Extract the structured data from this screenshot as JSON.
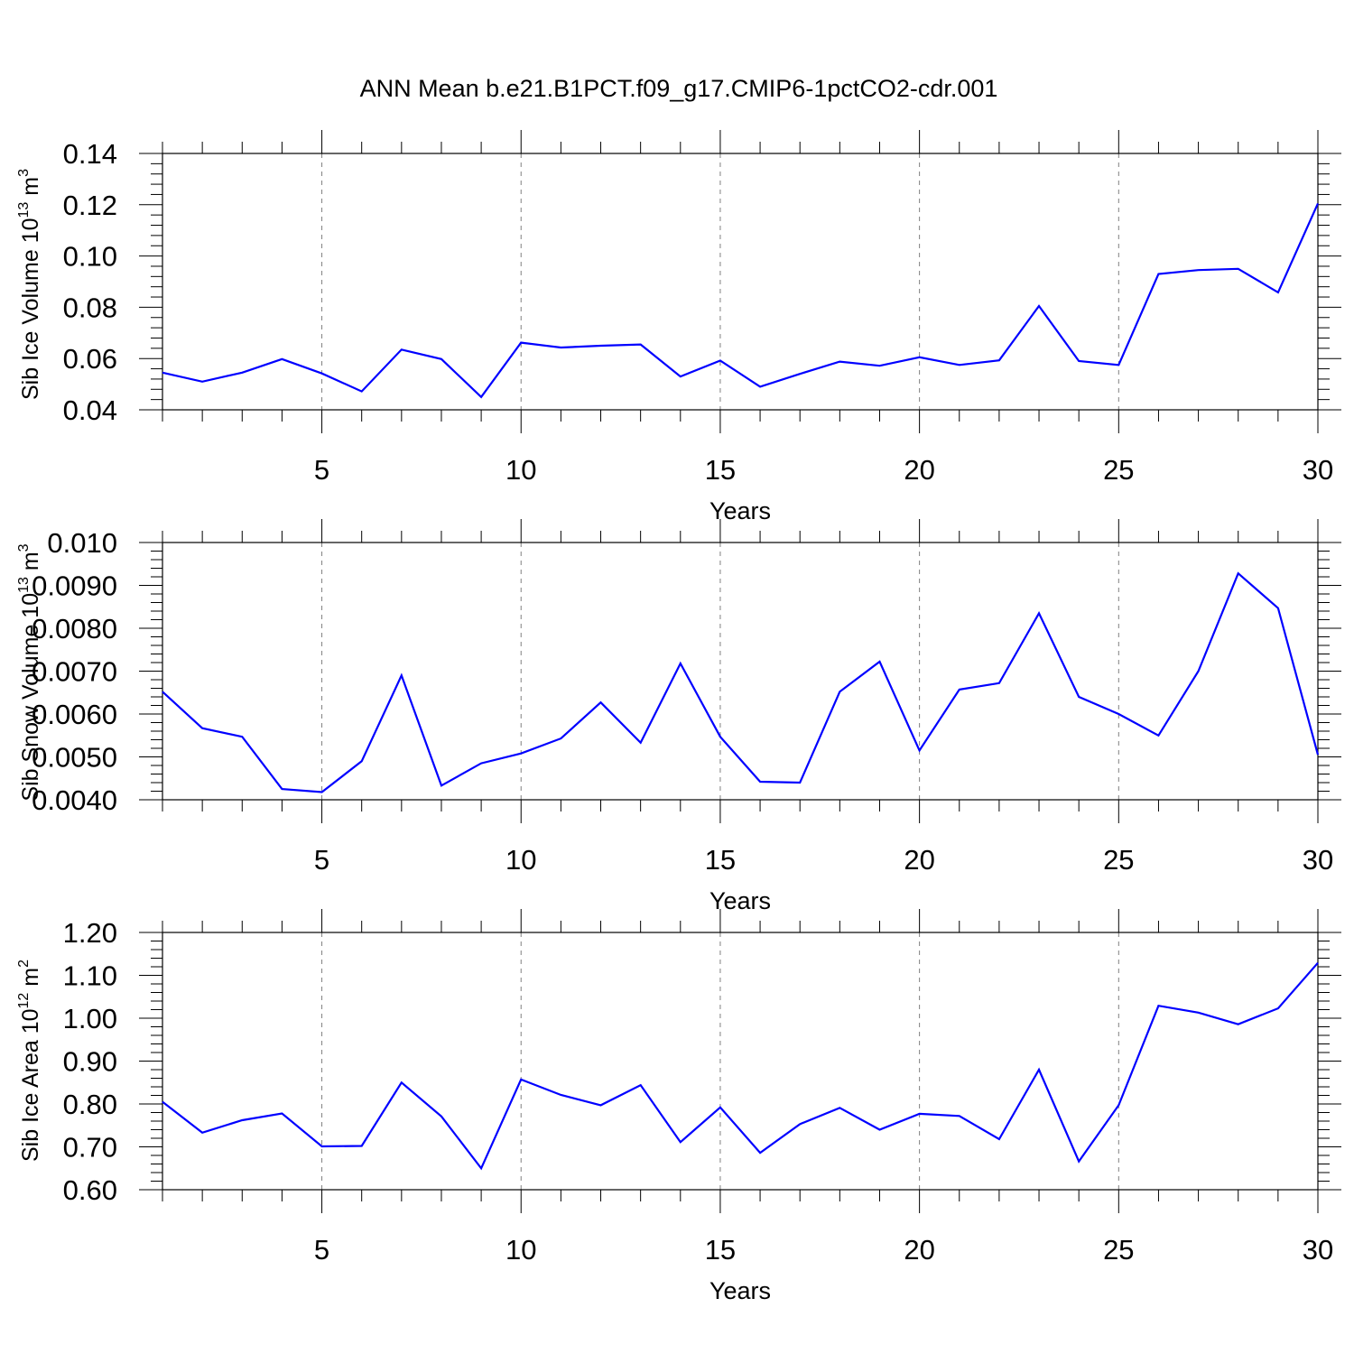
{
  "title": "ANN Mean b.e21.B1PCT.f09_g17.CMIP6-1pctCO2-cdr.001",
  "colors": {
    "line": "#0000ff",
    "axis": "#000000",
    "grid": "#808080"
  },
  "chart_data": [
    {
      "type": "line",
      "xlabel": "Years",
      "ylabel": {
        "prefix": "Sib Ice Volume 10",
        "sup": "13",
        "unit": " m",
        "unit_sup": "3"
      },
      "xlim": [
        1,
        30
      ],
      "ylim": [
        0.04,
        0.14
      ],
      "xticks": [
        5,
        10,
        15,
        20,
        25,
        30
      ],
      "yticks": [
        "0.04",
        "0.06",
        "0.08",
        "0.10",
        "0.12",
        "0.14"
      ],
      "grid": "vertical-dashed",
      "series": [
        {
          "x": [
            1,
            2,
            3,
            4,
            5,
            6,
            7,
            8,
            9,
            10,
            11,
            12,
            13,
            14,
            15,
            16,
            17,
            18,
            19,
            20,
            21,
            22,
            23,
            24,
            25,
            26,
            27,
            28,
            29,
            30
          ],
          "values": [
            0.0545,
            0.051,
            0.0545,
            0.0598,
            0.0542,
            0.0472,
            0.0635,
            0.0598,
            0.045,
            0.0662,
            0.0643,
            0.065,
            0.0655,
            0.053,
            0.0592,
            0.049,
            0.054,
            0.0588,
            0.0572,
            0.0605,
            0.0575,
            0.0593,
            0.0805,
            0.059,
            0.0575,
            0.093,
            0.0945,
            0.095,
            0.0858,
            0.1205
          ]
        }
      ]
    },
    {
      "type": "line",
      "xlabel": "Years",
      "ylabel": {
        "prefix": "Sib Snow Volume 10",
        "sup": "13",
        "unit": " m",
        "unit_sup": "3"
      },
      "xlim": [
        1,
        30
      ],
      "ylim": [
        0.004,
        0.01
      ],
      "xticks": [
        5,
        10,
        15,
        20,
        25,
        30
      ],
      "yticks": [
        "0.0040",
        "0.0050",
        "0.0060",
        "0.0070",
        "0.0080",
        "0.0090",
        "0.010"
      ],
      "grid": "vertical-dashed",
      "series": [
        {
          "x": [
            1,
            2,
            3,
            4,
            5,
            6,
            7,
            8,
            9,
            10,
            11,
            12,
            13,
            14,
            15,
            16,
            17,
            18,
            19,
            20,
            21,
            22,
            23,
            24,
            25,
            26,
            27,
            28,
            29,
            30
          ],
          "values": [
            0.00652,
            0.00567,
            0.00547,
            0.00425,
            0.00418,
            0.0049,
            0.0069,
            0.00433,
            0.00485,
            0.00508,
            0.00543,
            0.00627,
            0.00533,
            0.00718,
            0.00547,
            0.00442,
            0.0044,
            0.00652,
            0.00722,
            0.00515,
            0.00657,
            0.00672,
            0.00835,
            0.0064,
            0.006,
            0.0055,
            0.007,
            0.00928,
            0.00847,
            0.00505
          ]
        }
      ]
    },
    {
      "type": "line",
      "xlabel": "Years",
      "ylabel": {
        "prefix": "Sib Ice Area 10",
        "sup": "12",
        "unit": " m",
        "unit_sup": "2"
      },
      "xlim": [
        1,
        30
      ],
      "ylim": [
        0.6,
        1.2
      ],
      "xticks": [
        5,
        10,
        15,
        20,
        25,
        30
      ],
      "yticks": [
        "0.60",
        "0.70",
        "0.80",
        "0.90",
        "1.00",
        "1.10",
        "1.20"
      ],
      "grid": "vertical-dashed",
      "series": [
        {
          "x": [
            1,
            2,
            3,
            4,
            5,
            6,
            7,
            8,
            9,
            10,
            11,
            12,
            13,
            14,
            15,
            16,
            17,
            18,
            19,
            20,
            21,
            22,
            23,
            24,
            25,
            26,
            27,
            28,
            29,
            30
          ],
          "values": [
            0.805,
            0.733,
            0.762,
            0.778,
            0.701,
            0.702,
            0.85,
            0.771,
            0.65,
            0.857,
            0.821,
            0.797,
            0.844,
            0.711,
            0.792,
            0.686,
            0.753,
            0.791,
            0.74,
            0.777,
            0.772,
            0.718,
            0.88,
            0.666,
            0.797,
            1.029,
            1.013,
            0.986,
            1.023,
            1.129
          ]
        }
      ]
    }
  ]
}
